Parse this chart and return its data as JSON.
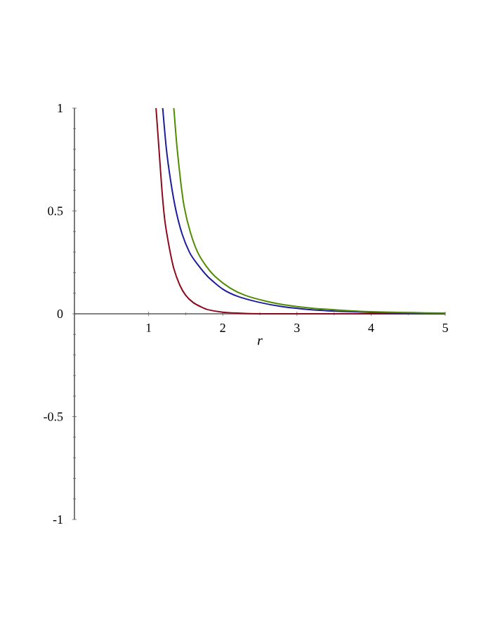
{
  "chart_data": {
    "type": "line",
    "xlabel": "*r*",
    "xlim": [
      0,
      5
    ],
    "ylim": [
      -1,
      1
    ],
    "xticks": [
      1,
      2,
      3,
      4,
      5
    ],
    "yticks": [
      -1,
      -0.5,
      0,
      0.5,
      1
    ],
    "grid": false,
    "marker": "none",
    "line_style": "solid",
    "series": [
      {
        "color": "#8c0a1e",
        "x": [
          1.1,
          1.14,
          1.18,
          1.22,
          1.28,
          1.34,
          1.42,
          1.5,
          1.6,
          1.7,
          1.8,
          2.0,
          2.3,
          2.6,
          3,
          4,
          5
        ],
        "values": [
          1.0,
          0.8,
          0.6,
          0.45,
          0.32,
          0.22,
          0.14,
          0.09,
          0.055,
          0.035,
          0.02,
          0.008,
          0.002,
          0,
          0,
          0,
          0
        ]
      },
      {
        "color": "#1c1c9c",
        "x": [
          1.19,
          1.24,
          1.3,
          1.37,
          1.45,
          1.55,
          1.65,
          1.8,
          2.0,
          2.2,
          2.5,
          2.8,
          3.2,
          3.6,
          4,
          4.5,
          5
        ],
        "values": [
          1.0,
          0.8,
          0.64,
          0.5,
          0.39,
          0.3,
          0.245,
          0.18,
          0.12,
          0.085,
          0.055,
          0.035,
          0.02,
          0.012,
          0.007,
          0.004,
          0.002
        ]
      },
      {
        "color": "#4f8c00",
        "x": [
          1.34,
          1.38,
          1.43,
          1.48,
          1.56,
          1.66,
          1.78,
          1.9,
          2.1,
          2.3,
          2.6,
          2.9,
          3.2,
          3.6,
          4,
          4.5,
          5
        ],
        "values": [
          1.0,
          0.82,
          0.65,
          0.52,
          0.4,
          0.3,
          0.23,
          0.18,
          0.125,
          0.09,
          0.06,
          0.04,
          0.027,
          0.017,
          0.01,
          0.006,
          0.003
        ]
      }
    ]
  }
}
